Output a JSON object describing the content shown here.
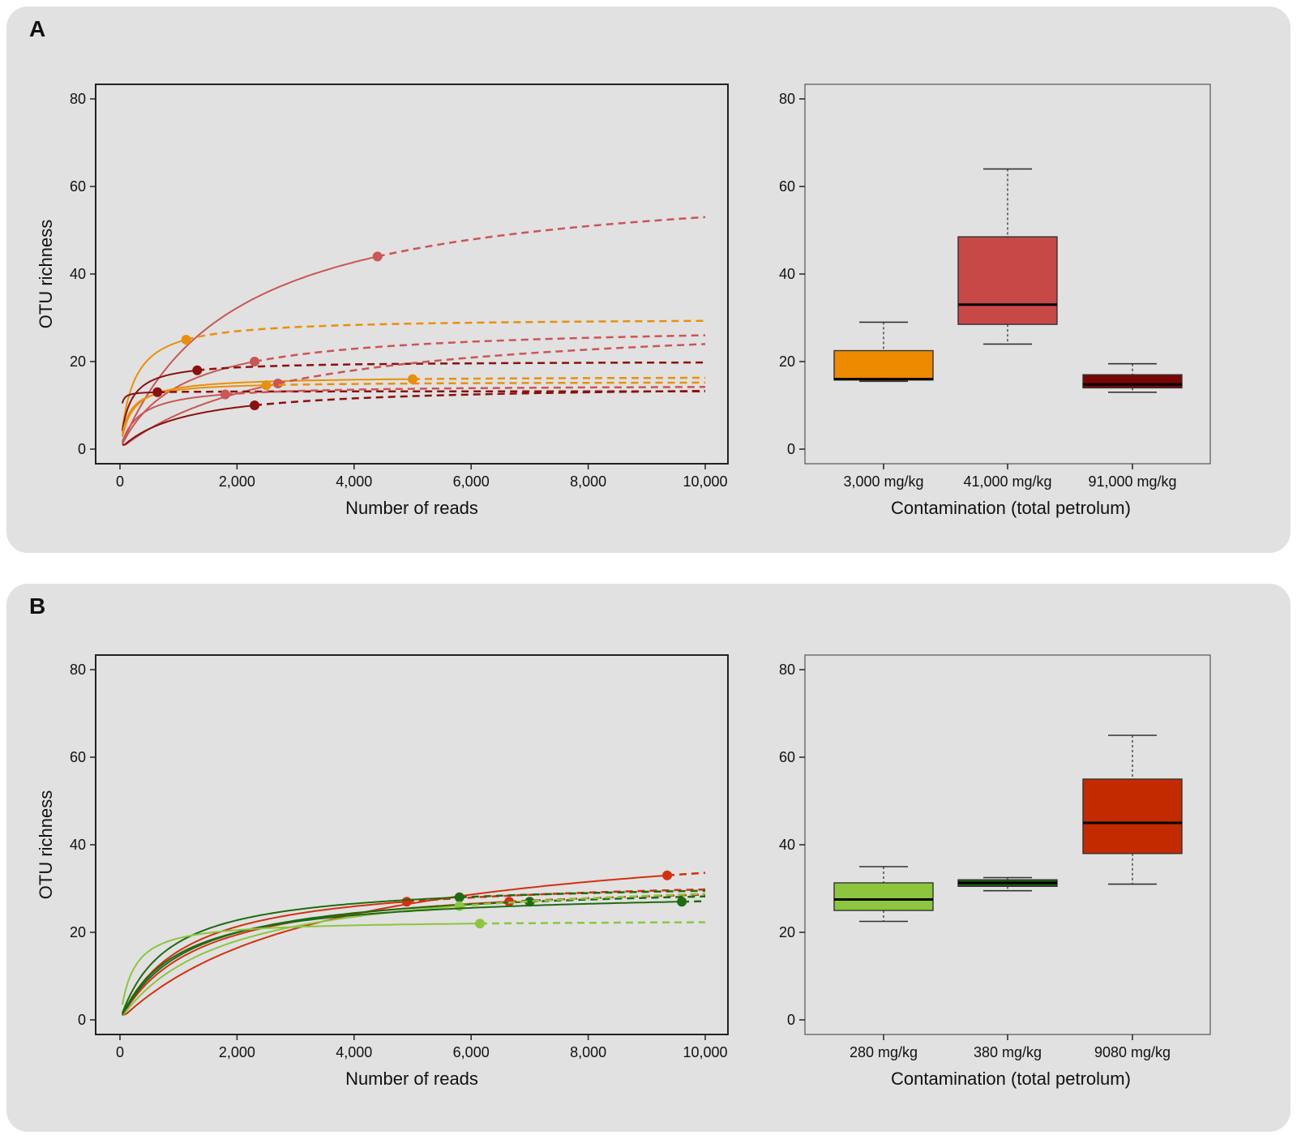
{
  "panels": [
    {
      "letter": "A",
      "charts": [
        "rarefaction_A",
        "box_A"
      ]
    },
    {
      "letter": "B",
      "charts": [
        "rarefaction_B",
        "box_B"
      ]
    }
  ],
  "chart_data": [
    {
      "id": "rarefaction_A",
      "type": "line",
      "xlabel": "Number of reads",
      "ylabel": "OTU richness",
      "xlim": [
        0,
        10000
      ],
      "ylim": [
        0,
        80
      ],
      "xticks": [
        0,
        2000,
        4000,
        6000,
        8000,
        10000
      ],
      "xtick_labels": [
        "0",
        "2,000",
        "4,000",
        "6,000",
        "8,000",
        "10,000"
      ],
      "yticks": [
        0,
        20,
        40,
        60,
        80
      ],
      "ytick_labels": [
        "0",
        "20",
        "40",
        "60",
        "80"
      ],
      "series": [
        {
          "name": "s1",
          "color": "#cc5555",
          "observed_reads": 4400,
          "observed_otu": 44,
          "end_otu": 53
        },
        {
          "name": "s2",
          "color": "#e8900a",
          "observed_reads": 1130,
          "observed_otu": 25,
          "end_otu": 29.3
        },
        {
          "name": "s3",
          "color": "#cc5555",
          "observed_reads": 2300,
          "observed_otu": 20,
          "end_otu": 26
        },
        {
          "name": "s4",
          "color": "#8b1010",
          "observed_reads": 1320,
          "observed_otu": 18,
          "end_otu": 19.8
        },
        {
          "name": "s5",
          "color": "#e8900a",
          "observed_reads": 5000,
          "observed_otu": 16,
          "end_otu": 16.3
        },
        {
          "name": "s6",
          "color": "#cc5555",
          "observed_reads": 2700,
          "observed_otu": 15,
          "end_otu": 24
        },
        {
          "name": "s7",
          "color": "#e8900a",
          "observed_reads": 2500,
          "observed_otu": 14.6,
          "end_otu": 15.2
        },
        {
          "name": "s8",
          "color": "#8b1010",
          "observed_reads": 640,
          "observed_otu": 13,
          "end_otu": 13.2
        },
        {
          "name": "s9",
          "color": "#cc5555",
          "observed_reads": 1800,
          "observed_otu": 12.5,
          "end_otu": 14.2
        },
        {
          "name": "s10",
          "color": "#8b1010",
          "observed_reads": 2300,
          "observed_otu": 10,
          "end_otu": 13.3
        }
      ]
    },
    {
      "id": "box_A",
      "type": "box",
      "xlabel": "Contamination (total petrolum)",
      "ylim": [
        0,
        80
      ],
      "yticks": [
        0,
        20,
        40,
        60,
        80
      ],
      "ytick_labels": [
        "0",
        "20",
        "40",
        "60",
        "80"
      ],
      "categories": [
        "3,000 mg/kg",
        "41,000 mg/kg",
        "91,000 mg/kg"
      ],
      "boxes": [
        {
          "min": 15.5,
          "q1": 15.8,
          "median": 16,
          "q3": 22.5,
          "max": 29,
          "color": "#ed8a00"
        },
        {
          "min": 24,
          "q1": 28.5,
          "median": 33,
          "q3": 48.5,
          "max": 64,
          "color": "#c84848"
        },
        {
          "min": 13,
          "q1": 14,
          "median": 14.8,
          "q3": 17,
          "max": 19.5,
          "color": "#7a0505"
        }
      ]
    },
    {
      "id": "rarefaction_B",
      "type": "line",
      "xlabel": "Number of reads",
      "ylabel": "OTU richness",
      "xlim": [
        0,
        10000
      ],
      "ylim": [
        0,
        80
      ],
      "xticks": [
        0,
        2000,
        4000,
        6000,
        8000,
        10000
      ],
      "xtick_labels": [
        "0",
        "2,000",
        "4,000",
        "6,000",
        "8,000",
        "10,000"
      ],
      "yticks": [
        0,
        20,
        40,
        60,
        80
      ],
      "ytick_labels": [
        "0",
        "20",
        "40",
        "60",
        "80"
      ],
      "series": [
        {
          "name": "t1",
          "color": "#d43010",
          "observed_reads": 9350,
          "observed_otu": 33,
          "end_otu": 33.6
        },
        {
          "name": "t2",
          "color": "#d43010",
          "observed_reads": 4900,
          "observed_otu": 27,
          "end_otu": 29.8
        },
        {
          "name": "t3",
          "color": "#1f6b12",
          "observed_reads": 5800,
          "observed_otu": 28,
          "end_otu": 29.5
        },
        {
          "name": "t4",
          "color": "#d43010",
          "observed_reads": 6650,
          "observed_otu": 27,
          "end_otu": 28.6
        },
        {
          "name": "t5",
          "color": "#1f6b12",
          "observed_reads": 7000,
          "observed_otu": 27,
          "end_otu": 28.2
        },
        {
          "name": "t6",
          "color": "#8cc63f",
          "observed_reads": 5800,
          "observed_otu": 26,
          "end_otu": 28.8
        },
        {
          "name": "t7",
          "color": "#1f6b12",
          "observed_reads": 9600,
          "observed_otu": 27,
          "end_otu": 27.1
        },
        {
          "name": "t8",
          "color": "#8cc63f",
          "observed_reads": 6150,
          "observed_otu": 22,
          "end_otu": 22.3
        }
      ]
    },
    {
      "id": "box_B",
      "type": "box",
      "xlabel": "Contamination (total petrolum)",
      "ylim": [
        0,
        80
      ],
      "yticks": [
        0,
        20,
        40,
        60,
        80
      ],
      "ytick_labels": [
        "0",
        "20",
        "40",
        "60",
        "80"
      ],
      "categories": [
        "280 mg/kg",
        "380 mg/kg",
        "9080 mg/kg"
      ],
      "boxes": [
        {
          "min": 22.5,
          "q1": 25,
          "median": 27.5,
          "q3": 31.3,
          "max": 35,
          "color": "#8cc63f"
        },
        {
          "min": 29.5,
          "q1": 30.5,
          "median": 31.3,
          "q3": 32,
          "max": 32.5,
          "color": "#1a5e12"
        },
        {
          "min": 31,
          "q1": 38,
          "median": 45,
          "q3": 55,
          "max": 65,
          "color": "#c42a00"
        }
      ]
    }
  ]
}
